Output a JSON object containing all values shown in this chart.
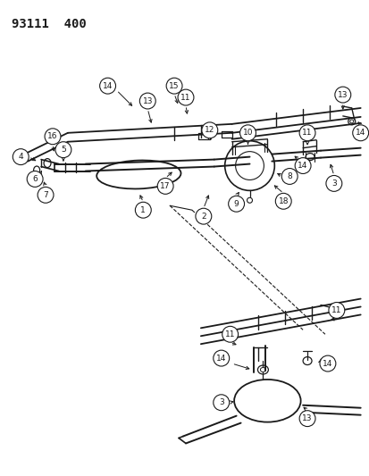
{
  "title": "93111  400",
  "bg_color": "#ffffff",
  "line_color": "#1a1a1a",
  "fig_width": 4.14,
  "fig_height": 5.33,
  "dpi": 100
}
